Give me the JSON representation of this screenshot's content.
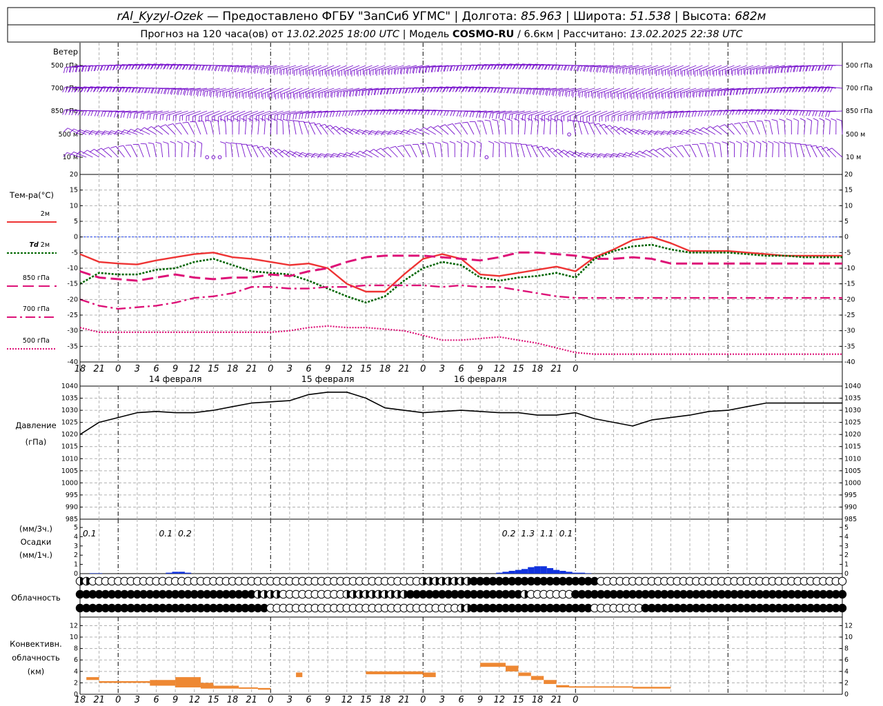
{
  "header": {
    "station": "rAl_Kyzyl-Ozek",
    "provider": "Предоставлено ФГБУ \"ЗапСиб УГМС\"",
    "lon_label": "Долгота:",
    "lon": "85.963",
    "lat_label": "Широта:",
    "lat": "51.538",
    "alt_label": "Высота:",
    "alt": "682м",
    "forecast_prefix": "Прогноз на 120 часа(ов) от",
    "forecast_start": "13.02.2025 18:00 UTC",
    "model_prefix": "Модель",
    "model": "COSMO-RU",
    "model_res": "/ 6.6км",
    "computed_prefix": "Рассчитано:",
    "computed": "13.02.2025 22:38 UTC"
  },
  "x_axis": {
    "tick_labels": [
      "18",
      "21",
      "0",
      "3",
      "6",
      "9",
      "12",
      "15",
      "18",
      "21",
      "0",
      "3",
      "6",
      "9",
      "12",
      "15",
      "18",
      "21",
      "0",
      "3",
      "6",
      "9",
      "12",
      "15",
      "18",
      "21",
      "0"
    ],
    "days": [
      {
        "label": "14 февраля",
        "hour": 15
      },
      {
        "label": "15 февраля",
        "hour": 39
      },
      {
        "label": "16 февраля",
        "hour": 63
      }
    ]
  },
  "colors": {
    "t2m": "#ee3333",
    "td2m": "#006600",
    "t850": "#dd1177",
    "t700": "#dd1177",
    "t500": "#dd1177",
    "pressure": "#000000",
    "precip": "#1133dd",
    "convective": "#ee8833",
    "wind": "#7711cc",
    "zero_line": "#2244ee"
  },
  "wind_panel": {
    "title": "Ветер",
    "levels": [
      "500 гПа",
      "700 гПа",
      "850 гПа",
      "500 м",
      "10 м"
    ],
    "calm_markers": [
      {
        "level": "10 м",
        "hours": [
          20,
          21,
          22
        ]
      },
      {
        "level": "10 м",
        "hours": [
          64
        ]
      },
      {
        "level": "500 м",
        "hours": [
          77
        ]
      }
    ]
  },
  "temp_panel": {
    "title": "Тем-ра(°C)",
    "legend": [
      {
        "key": "t2m",
        "label": "2м"
      },
      {
        "key": "td2m",
        "label": "Td  2м"
      },
      {
        "key": "t850",
        "label": "850 гПа"
      },
      {
        "key": "t700",
        "label": "700 гПа"
      },
      {
        "key": "t500",
        "label": "500 гПа"
      }
    ],
    "y_ticks": [
      "20",
      "15",
      "10",
      "5",
      "0",
      "-5",
      "-10",
      "-15",
      "-20",
      "-25",
      "-30",
      "-35",
      "-40"
    ]
  },
  "pressure_panel": {
    "title": "Давление",
    "unit": "(гПа)",
    "y_ticks": [
      "1040",
      "1035",
      "1030",
      "1025",
      "1020",
      "1015",
      "1010",
      "1005",
      "1000",
      "995",
      "990",
      "985"
    ]
  },
  "precip_panel": {
    "unit3": "(мм/3ч.)",
    "title": "Осадки",
    "unit1": "(мм/1ч.)",
    "y_ticks": [
      "5",
      "4",
      "3",
      "2",
      "1",
      "0"
    ],
    "totals": [
      {
        "hour": 1.5,
        "text": "0.1"
      },
      {
        "hour": 13.5,
        "text": "0.1"
      },
      {
        "hour": 16.5,
        "text": "0.2"
      },
      {
        "hour": 67.5,
        "text": "0.2"
      },
      {
        "hour": 70.5,
        "text": "1.3"
      },
      {
        "hour": 73.5,
        "text": "1.1"
      },
      {
        "hour": 76.5,
        "text": "0.1"
      }
    ]
  },
  "cloud_panel": {
    "title": "Облачность"
  },
  "convective_panel": {
    "title_line1": "Конвективн.",
    "title_line2": "облачность",
    "unit": "(км)",
    "y_ticks": [
      "12",
      "10",
      "8",
      "6",
      "4",
      "2",
      "0"
    ]
  },
  "chart_data": [
    {
      "type": "line",
      "title": "Тем-ра(°C)",
      "x_unit": "hours since 13.02.2025 18:00 UTC",
      "ylim": [
        -40,
        20
      ],
      "x": [
        0,
        3,
        6,
        9,
        12,
        15,
        18,
        21,
        24,
        27,
        30,
        33,
        36,
        39,
        42,
        45,
        48,
        51,
        54,
        57,
        60,
        63,
        66,
        69,
        72,
        75,
        78,
        81,
        84,
        87,
        90,
        93,
        96,
        99,
        102,
        105,
        108,
        111,
        114,
        117,
        120
      ],
      "series": [
        {
          "name": "2м",
          "key": "t2m",
          "values": [
            -5.5,
            -8,
            -8.5,
            -8.8,
            -7.5,
            -6.5,
            -5.5,
            -5,
            -6.5,
            -7,
            -8,
            -9,
            -8.5,
            -10,
            -15,
            -17.5,
            -17.5,
            -12,
            -7,
            -5.5,
            -7,
            -12,
            -12.5,
            -11.5,
            -10.5,
            -9.5,
            -11,
            -6.5,
            -4,
            -1,
            0,
            -2,
            -4.5,
            -4.5,
            -4.5,
            -5,
            -5.5,
            -6,
            -6,
            -6,
            -6
          ]
        },
        {
          "name": "Td  2м",
          "key": "td2m",
          "values": [
            -15,
            -11.5,
            -12,
            -12,
            -10.5,
            -10,
            -8,
            -7,
            -9,
            -11,
            -11.5,
            -12,
            -14,
            -16.5,
            -19,
            -21,
            -19,
            -14,
            -10,
            -8,
            -9,
            -13,
            -14,
            -13,
            -12.5,
            -11.5,
            -13,
            -7,
            -4.5,
            -3,
            -2.5,
            -4,
            -5,
            -5,
            -5,
            -5.5,
            -6,
            -6,
            -6.5,
            -6.5,
            -6.5
          ]
        },
        {
          "name": "850 гПа",
          "key": "t850",
          "values": [
            -11,
            -13,
            -13.5,
            -14,
            -13,
            -12,
            -13,
            -13.5,
            -13,
            -13,
            -12,
            -12.5,
            -11,
            -10,
            -8,
            -6.5,
            -6,
            -6,
            -6,
            -6.5,
            -7,
            -7.5,
            -6.5,
            -5,
            -5,
            -5.5,
            -6,
            -7,
            -7,
            -6.5,
            -7,
            -8.5,
            -8.5,
            -8.5,
            -8.5,
            -8.5,
            -8.5,
            -8.5,
            -8.5,
            -8.5,
            -8.5
          ]
        },
        {
          "name": "700 гПа",
          "key": "t700",
          "values": [
            -20,
            -22,
            -23,
            -22.5,
            -22,
            -21,
            -19.5,
            -19,
            -18,
            -16,
            -16,
            -16.5,
            -16.5,
            -16,
            -16,
            -15.5,
            -15.5,
            -15.5,
            -15.5,
            -16,
            -15.5,
            -16,
            -16,
            -17,
            -18,
            -19,
            -19.5,
            -19.5,
            -19.5,
            -19.5,
            -19.5,
            -19.5,
            -19.5,
            -19.5,
            -19.5,
            -19.5,
            -19.5,
            -19.5,
            -19.5,
            -19.5,
            -19.5
          ]
        },
        {
          "name": "500 гПа",
          "key": "t500",
          "values": [
            -29,
            -30.5,
            -30.5,
            -30.5,
            -30.5,
            -30.5,
            -30.5,
            -30.5,
            -30.5,
            -30.5,
            -30.5,
            -30,
            -29,
            -28.5,
            -29,
            -29,
            -29.5,
            -30,
            -31.5,
            -33,
            -33,
            -32.5,
            -32,
            -33,
            -34,
            -35.5,
            -37,
            -37.5,
            -37.5,
            -37.5,
            -37.5,
            -37.5,
            -37.5,
            -37.5,
            -37.5,
            -37.5,
            -37.5,
            -37.5,
            -37.5,
            -37.5,
            -37.5
          ]
        }
      ]
    },
    {
      "type": "line",
      "title": "Давление",
      "x_unit": "hours since 13.02.2025 18:00 UTC",
      "ylim": [
        985,
        1040
      ],
      "x": [
        0,
        3,
        6,
        9,
        12,
        15,
        18,
        21,
        24,
        27,
        30,
        33,
        36,
        39,
        42,
        45,
        48,
        51,
        54,
        57,
        60,
        63,
        66,
        69,
        72,
        75,
        78,
        81,
        84,
        87,
        90,
        93,
        96,
        99,
        102,
        105,
        108,
        111,
        114,
        117,
        120
      ],
      "series": [
        {
          "name": "Давление",
          "key": "pressure",
          "values": [
            1020,
            1025,
            1027,
            1029,
            1029.5,
            1029,
            1029,
            1030,
            1031.5,
            1033,
            1033.5,
            1034,
            1036.5,
            1037.5,
            1037.5,
            1035,
            1031,
            1030,
            1029,
            1029.5,
            1030,
            1029.5,
            1029,
            1029,
            1028,
            1028,
            1029,
            1026.5,
            1025,
            1023.5,
            1026,
            1027,
            1028,
            1029.5,
            1030,
            1031.5,
            1033,
            1033,
            1033,
            1033,
            1033
          ]
        }
      ]
    },
    {
      "type": "bar",
      "title": "Осадки",
      "x_unit": "hours since 13.02.2025 18:00 UTC",
      "ylim": [
        0,
        5
      ],
      "x": [
        2,
        3,
        14,
        15,
        16,
        17,
        66,
        67,
        68,
        69,
        70,
        71,
        72,
        73,
        74,
        75,
        76,
        77,
        78,
        79,
        80
      ],
      "series": [
        {
          "name": "Осадки",
          "key": "precip",
          "values": [
            0.05,
            0.05,
            0.1,
            0.2,
            0.2,
            0.1,
            0.1,
            0.2,
            0.3,
            0.4,
            0.5,
            0.7,
            0.8,
            0.8,
            0.6,
            0.4,
            0.3,
            0.2,
            0.1,
            0.1,
            0.05
          ]
        }
      ]
    },
    {
      "type": "bar",
      "title": "Конвективн. облачность",
      "x_unit": "hours since 13.02.2025 18:00 UTC",
      "ylim": [
        0,
        13
      ],
      "segments_km": [
        {
          "start": 1,
          "end": 3,
          "base": 2.5,
          "top": 3.0
        },
        {
          "start": 3,
          "end": 11,
          "base": 2.0,
          "top": 2.3
        },
        {
          "start": 11,
          "end": 12,
          "base": 2.0,
          "top": 2.2
        },
        {
          "start": 11,
          "end": 15,
          "base": 1.5,
          "top": 2.5
        },
        {
          "start": 15,
          "end": 19,
          "base": 1.2,
          "top": 3.0
        },
        {
          "start": 19,
          "end": 21,
          "base": 1.0,
          "top": 2.0
        },
        {
          "start": 21,
          "end": 25,
          "base": 1.0,
          "top": 1.5
        },
        {
          "start": 25,
          "end": 28,
          "base": 1.0,
          "top": 1.2
        },
        {
          "start": 28,
          "end": 30,
          "base": 0.8,
          "top": 1.1
        },
        {
          "start": 34,
          "end": 35,
          "base": 3.0,
          "top": 3.8
        },
        {
          "start": 45,
          "end": 54,
          "base": 3.5,
          "top": 4.0
        },
        {
          "start": 54,
          "end": 56,
          "base": 3.0,
          "top": 3.8
        },
        {
          "start": 63,
          "end": 67,
          "base": 4.8,
          "top": 5.5
        },
        {
          "start": 67,
          "end": 69,
          "base": 4.0,
          "top": 5.0
        },
        {
          "start": 69,
          "end": 71,
          "base": 3.2,
          "top": 3.8
        },
        {
          "start": 71,
          "end": 73,
          "base": 2.5,
          "top": 3.2
        },
        {
          "start": 73,
          "end": 75,
          "base": 1.8,
          "top": 2.5
        },
        {
          "start": 75,
          "end": 77,
          "base": 1.2,
          "top": 1.6
        },
        {
          "start": 77,
          "end": 87,
          "base": 1.2,
          "top": 1.4
        },
        {
          "start": 87,
          "end": 93,
          "base": 1.0,
          "top": 1.3
        }
      ]
    }
  ]
}
